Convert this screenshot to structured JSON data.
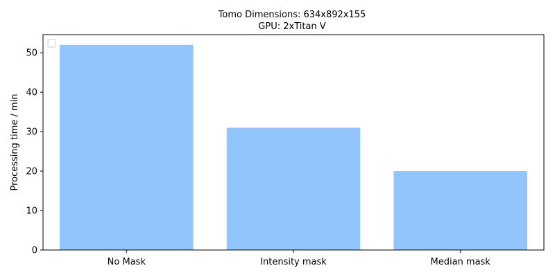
{
  "chart_data": {
    "type": "bar",
    "title": "Tomo Dimensions: 634x892x155",
    "subtitle": "GPU: 2xTitan V",
    "xlabel": "",
    "ylabel": "Processing time / min",
    "categories": [
      "No Mask",
      "Intensity mask",
      "Median mask"
    ],
    "values": [
      52,
      31,
      20
    ],
    "ylim": [
      0,
      54.6
    ],
    "yticks": [
      0,
      10,
      20,
      30,
      40,
      50
    ],
    "bar_color": "#92c5fc",
    "grid": false,
    "legend": {
      "placement": "top-left",
      "entries": []
    }
  }
}
